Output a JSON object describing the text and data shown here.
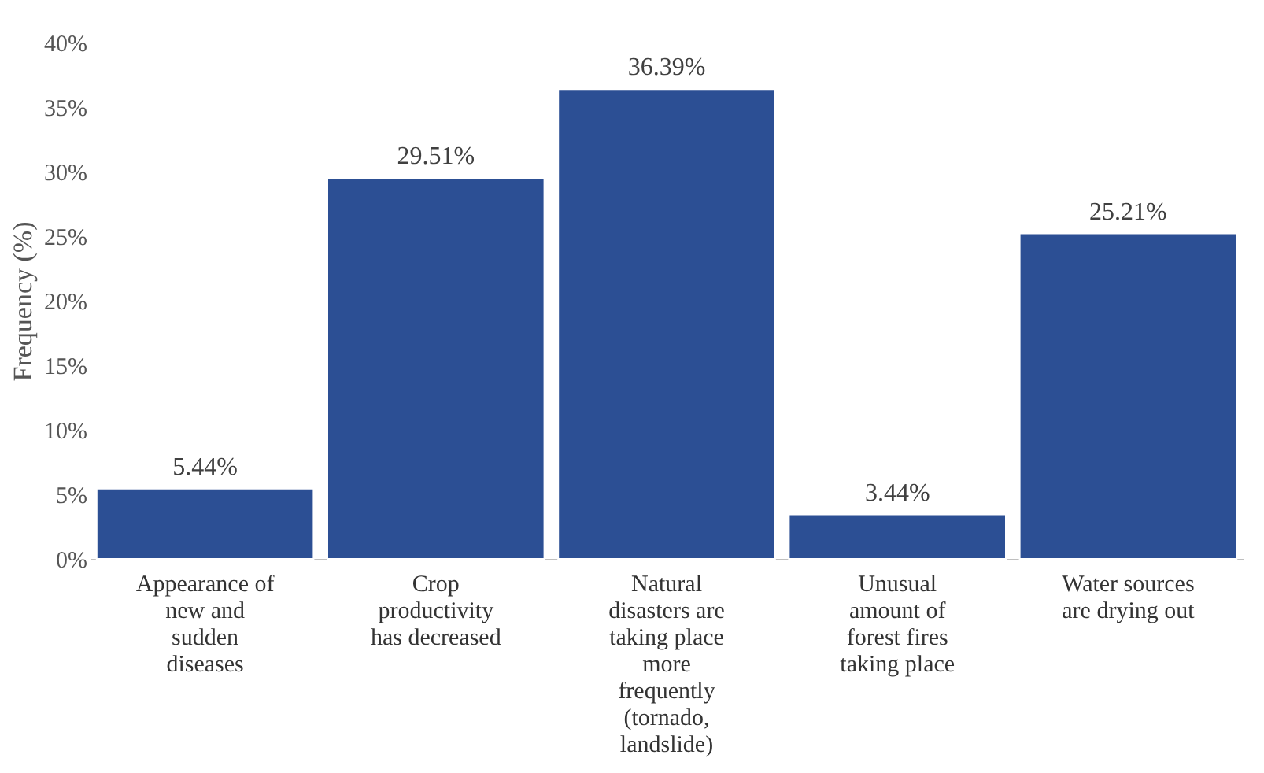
{
  "chart_data": {
    "type": "bar",
    "ylabel": "Frequency (%)",
    "categories": [
      "Appearance of\nnew and\nsudden\ndiseases",
      "Crop\nproductivity\nhas decreased",
      "Natural\ndisasters are\ntaking place\nmore\nfrequently\n(tornado,\nlandslide)",
      "Unusual\namount of\nforest fires\ntaking place",
      "Water sources\nare drying out"
    ],
    "values": [
      5.44,
      29.51,
      36.39,
      3.44,
      25.21
    ],
    "value_labels": [
      "5.44%",
      "29.51%",
      "36.39%",
      "3.44%",
      "25.21%"
    ],
    "color": "#2c4f94",
    "ylim": [
      0,
      40
    ],
    "yticks": [
      {
        "value": 0,
        "label": "0%"
      },
      {
        "value": 5,
        "label": "5%"
      },
      {
        "value": 10,
        "label": "10%"
      },
      {
        "value": 15,
        "label": "15%"
      },
      {
        "value": 20,
        "label": "20%"
      },
      {
        "value": 25,
        "label": "25%"
      },
      {
        "value": 30,
        "label": "30%"
      },
      {
        "value": 35,
        "label": "35%"
      },
      {
        "value": 40,
        "label": "40%"
      }
    ],
    "grid": false
  }
}
